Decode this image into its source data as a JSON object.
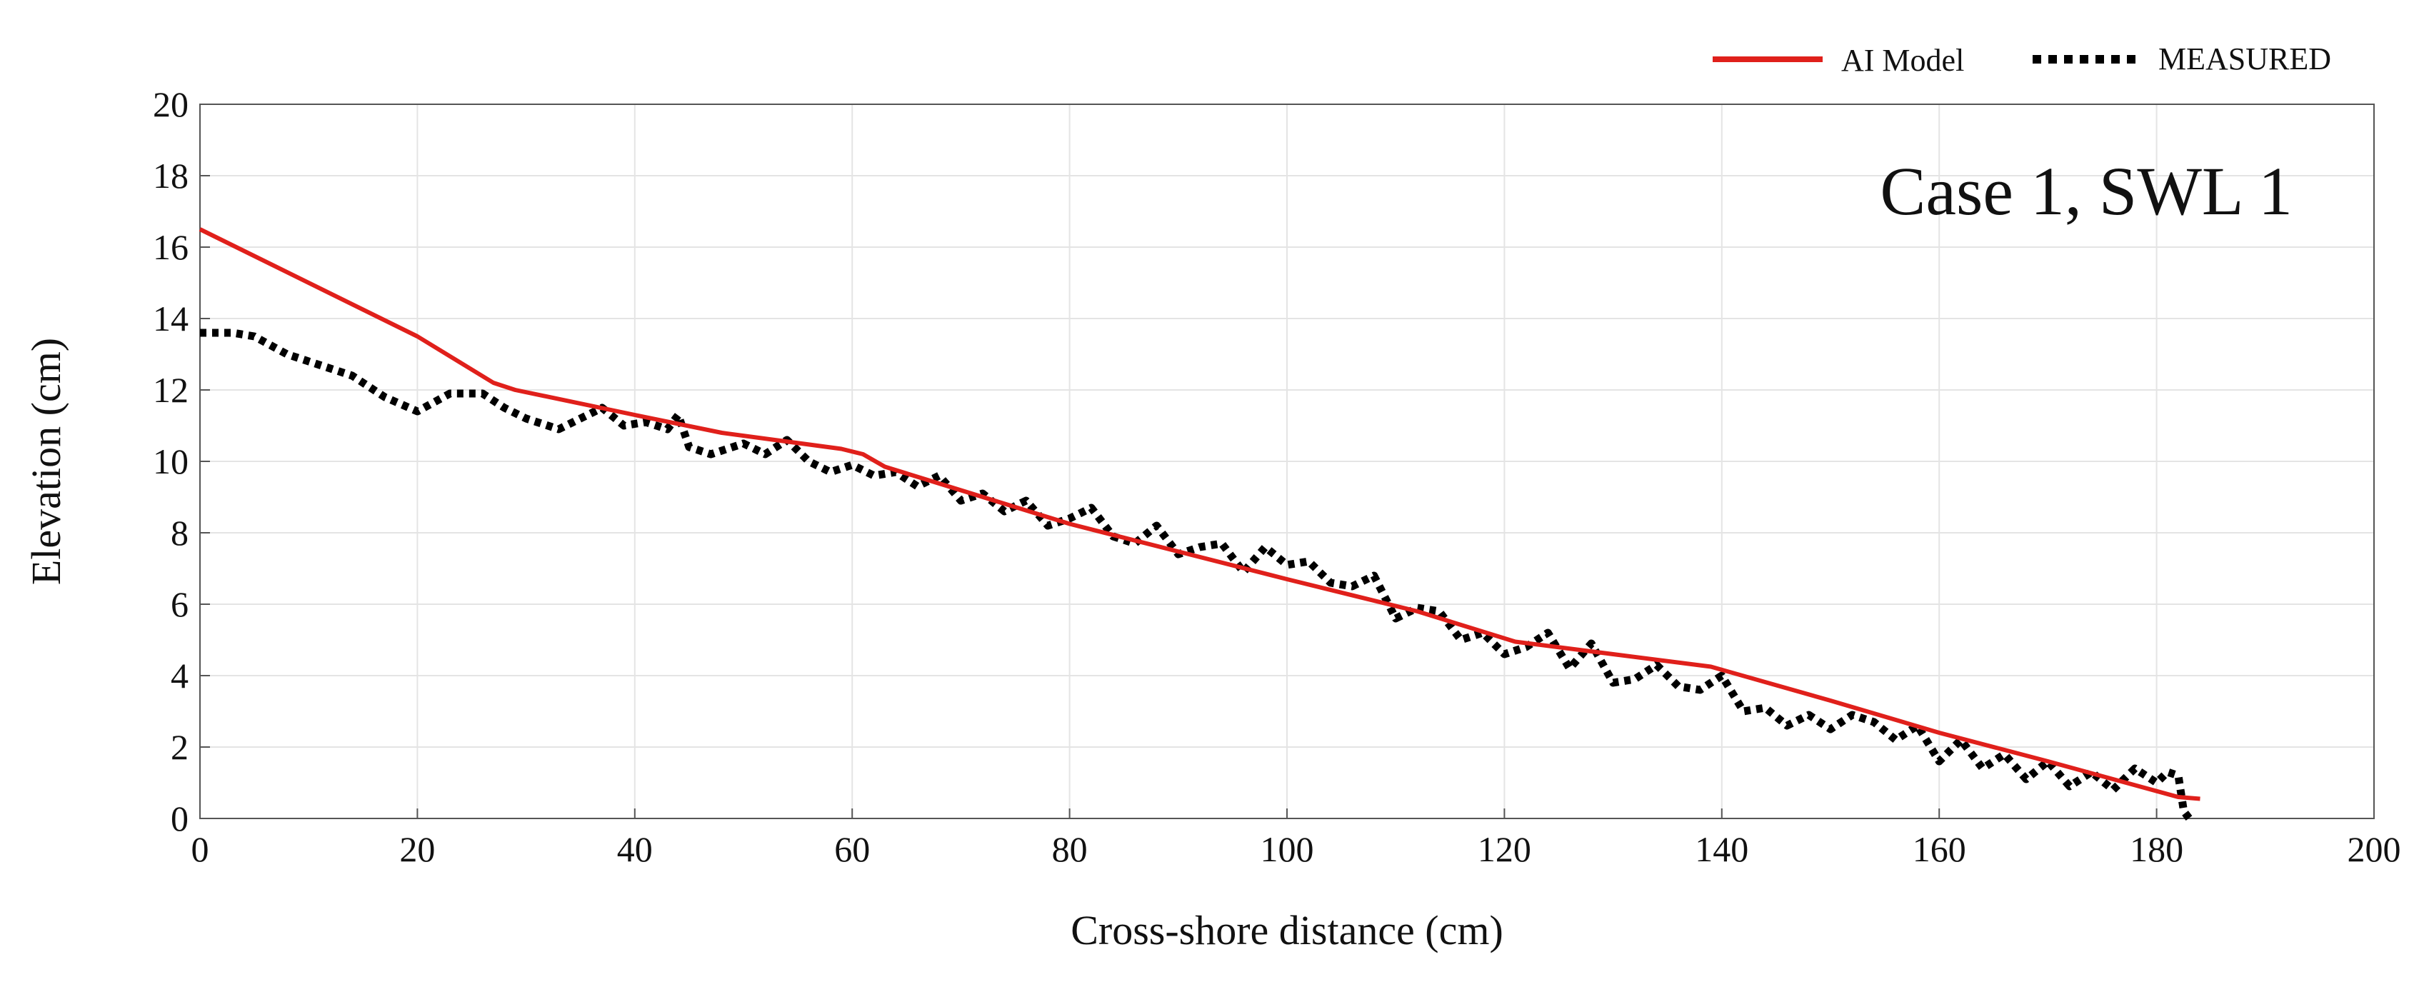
{
  "chart_data": {
    "type": "line",
    "title": "",
    "annotation": "Case 1,  SWL 1",
    "xlabel": "Cross-shore distance (cm)",
    "ylabel": "Elevation (cm)",
    "xlim": [
      0,
      200
    ],
    "ylim": [
      0,
      20
    ],
    "xticks": [
      0,
      20,
      40,
      60,
      80,
      100,
      120,
      140,
      160,
      180,
      200
    ],
    "yticks": [
      0,
      2,
      4,
      6,
      8,
      10,
      12,
      14,
      16,
      18,
      20
    ],
    "grid": true,
    "legend_position": "top-right, outside above plot",
    "series": [
      {
        "name": "AI Model",
        "color": "#e0201b",
        "style": "solid",
        "x": [
          0,
          20,
          27,
          29,
          40,
          48,
          59,
          61,
          63,
          80,
          100,
          112,
          121,
          130,
          139,
          150,
          160,
          170,
          182,
          184
        ],
        "y": [
          16.5,
          13.5,
          12.2,
          12.0,
          11.3,
          10.8,
          10.35,
          10.2,
          9.85,
          8.25,
          6.7,
          5.8,
          4.95,
          4.6,
          4.25,
          3.3,
          2.4,
          1.6,
          0.6,
          0.55
        ]
      },
      {
        "name": "MEASURED",
        "color": "#000000",
        "style": "dotted",
        "x": [
          0,
          3,
          5,
          8,
          11,
          14,
          17,
          20,
          23,
          26,
          28,
          30,
          33,
          35,
          37,
          39,
          41,
          43,
          44,
          45,
          47,
          50,
          52,
          54,
          56,
          58,
          60,
          62,
          64,
          66,
          68,
          70,
          72,
          74,
          76,
          78,
          80,
          82,
          84,
          86,
          88,
          90,
          92,
          94,
          96,
          98,
          100,
          102,
          104,
          106,
          108,
          110,
          112,
          114,
          116,
          118,
          120,
          122,
          124,
          126,
          128,
          130,
          132,
          134,
          136,
          138,
          140,
          142,
          144,
          146,
          148,
          150,
          152,
          154,
          156,
          158,
          160,
          162,
          164,
          166,
          168,
          170,
          172,
          174,
          176,
          178,
          180,
          181,
          182,
          182.5,
          183
        ],
        "y": [
          13.6,
          13.6,
          13.5,
          13.0,
          12.7,
          12.4,
          11.8,
          11.4,
          11.9,
          11.9,
          11.5,
          11.2,
          10.9,
          11.2,
          11.5,
          11.0,
          11.1,
          10.9,
          11.3,
          10.4,
          10.2,
          10.5,
          10.2,
          10.6,
          10.0,
          9.7,
          9.9,
          9.6,
          9.7,
          9.3,
          9.6,
          8.9,
          9.1,
          8.6,
          8.9,
          8.2,
          8.4,
          8.7,
          7.9,
          7.7,
          8.2,
          7.4,
          7.6,
          7.7,
          6.9,
          7.6,
          7.1,
          7.2,
          6.6,
          6.5,
          6.8,
          5.6,
          5.9,
          5.8,
          5.0,
          5.2,
          4.6,
          4.8,
          5.2,
          4.2,
          4.9,
          3.8,
          3.9,
          4.3,
          3.7,
          3.6,
          4.0,
          3.0,
          3.1,
          2.6,
          2.9,
          2.5,
          2.9,
          2.7,
          2.2,
          2.6,
          1.6,
          2.2,
          1.4,
          1.8,
          1.1,
          1.6,
          0.9,
          1.3,
          0.8,
          1.4,
          1.0,
          1.3,
          1.2,
          0.2,
          0.0
        ]
      }
    ]
  }
}
